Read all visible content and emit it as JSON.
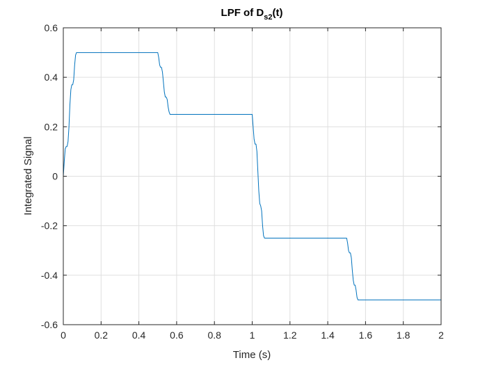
{
  "chart_data": {
    "type": "line",
    "title": {
      "main": "LPF of D",
      "subscript": "s2",
      "suffix": "(t)"
    },
    "xlabel": "Time (s)",
    "ylabel": "Integrated Signal",
    "xlim": [
      0,
      2
    ],
    "ylim": [
      -0.6,
      0.6
    ],
    "xticks": [
      0,
      0.2,
      0.4,
      0.6,
      0.8,
      1,
      1.2,
      1.4,
      1.6,
      1.8,
      2
    ],
    "xtick_labels": [
      "0",
      "0.2",
      "0.4",
      "0.6",
      "0.8",
      "1",
      "1.2",
      "1.4",
      "1.6",
      "1.8",
      "2"
    ],
    "yticks": [
      -0.6,
      -0.4,
      -0.2,
      0,
      0.2,
      0.4,
      0.6
    ],
    "ytick_labels": [
      "-0.6",
      "-0.4",
      "-0.2",
      "0",
      "0.2",
      "0.4",
      "0.6"
    ],
    "grid": true,
    "line_color": "#0072BD",
    "series": [
      {
        "x": [
          0,
          0.005,
          0.01,
          0.015,
          0.02,
          0.025,
          0.03,
          0.035,
          0.04,
          0.045,
          0.05,
          0.055,
          0.06,
          0.065,
          0.07,
          0.075,
          0.08,
          0.085,
          0.09,
          0.095,
          0.1,
          0.5,
          0.505,
          0.51,
          0.515,
          0.52,
          0.525,
          0.53,
          0.535,
          0.54,
          0.545,
          0.55,
          0.555,
          0.56,
          0.565,
          0.57,
          0.575,
          0.58,
          0.585,
          0.59,
          0.595,
          0.6,
          1.0,
          1.005,
          1.01,
          1.015,
          1.02,
          1.025,
          1.03,
          1.035,
          1.04,
          1.045,
          1.05,
          1.055,
          1.06,
          1.065,
          1.07,
          1.075,
          1.08,
          1.085,
          1.09,
          1.095,
          1.1,
          1.5,
          1.505,
          1.51,
          1.515,
          1.52,
          1.525,
          1.53,
          1.535,
          1.54,
          1.545,
          1.55,
          1.555,
          1.56,
          1.565,
          1.57,
          1.575,
          1.58,
          1.585,
          1.59,
          1.595,
          1.6,
          2.0
        ],
        "y": [
          0,
          0.06,
          0.11,
          0.12,
          0.12,
          0.14,
          0.2,
          0.29,
          0.35,
          0.37,
          0.37,
          0.39,
          0.45,
          0.49,
          0.5,
          0.5,
          0.5,
          0.5,
          0.5,
          0.5,
          0.5,
          0.5,
          0.48,
          0.45,
          0.44,
          0.44,
          0.42,
          0.38,
          0.34,
          0.32,
          0.32,
          0.31,
          0.28,
          0.26,
          0.25,
          0.25,
          0.25,
          0.25,
          0.25,
          0.25,
          0.25,
          0.25,
          0.25,
          0.2,
          0.15,
          0.13,
          0.13,
          0.1,
          0.02,
          -0.06,
          -0.11,
          -0.12,
          -0.14,
          -0.2,
          -0.24,
          -0.25,
          -0.25,
          -0.25,
          -0.25,
          -0.25,
          -0.25,
          -0.25,
          -0.25,
          -0.25,
          -0.27,
          -0.3,
          -0.31,
          -0.31,
          -0.33,
          -0.38,
          -0.42,
          -0.44,
          -0.44,
          -0.46,
          -0.49,
          -0.5,
          -0.5,
          -0.5,
          -0.5,
          -0.5,
          -0.5,
          -0.5,
          -0.5,
          -0.5,
          -0.5
        ]
      }
    ]
  }
}
